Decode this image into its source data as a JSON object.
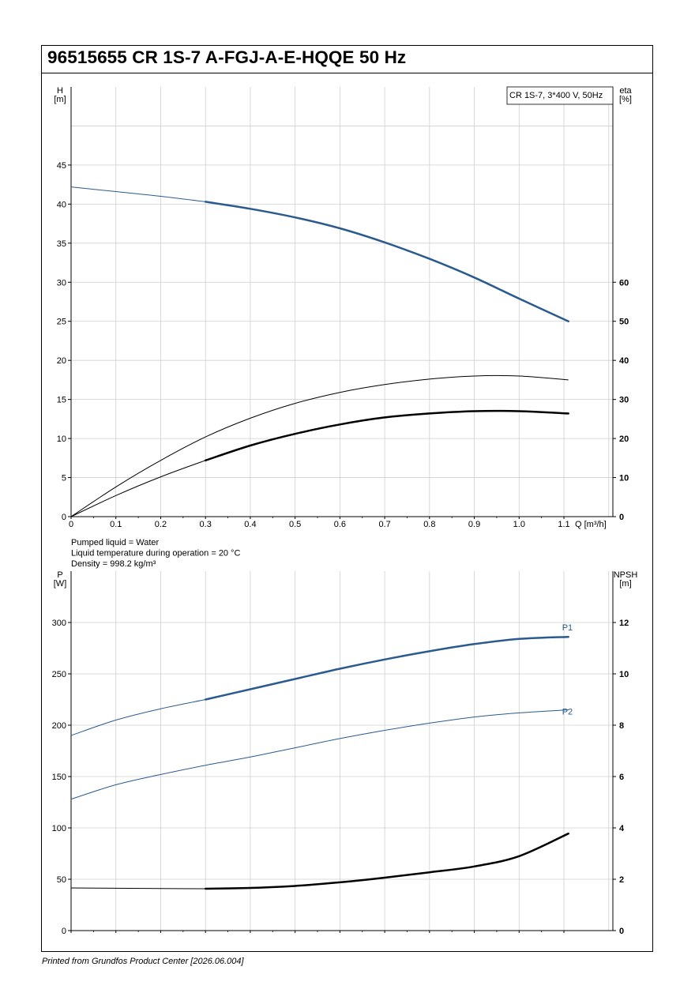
{
  "title": "96515655 CR 1S-7 A-FGJ-A-E-HQQE 50 Hz",
  "footer": "Printed from Grundfos Product Center [2026.06.004]",
  "colors": {
    "blue": "#2b5a8e",
    "black": "#000000",
    "grid": "#cfcfcf"
  },
  "chart_data": [
    {
      "type": "line",
      "legend_box": "CR 1S-7, 3*400 V, 50Hz",
      "y_left_label": [
        "H",
        "[m]"
      ],
      "y_right_label": [
        "eta",
        "[%]"
      ],
      "x_label": "Q [m³/h]",
      "xlim": [
        0,
        1.2
      ],
      "x_ticks": [
        0,
        0.1,
        0.2,
        0.3,
        0.4,
        0.5,
        0.6,
        0.7,
        0.8,
        0.9,
        1.0,
        1.1
      ],
      "x_tick_labels": [
        "0",
        "0.1",
        "0.2",
        "0.3",
        "0.4",
        "0.5",
        "0.6",
        "0.7",
        "0.8",
        "0.9",
        "1.0",
        "1.1"
      ],
      "ylim_left": [
        0,
        55
      ],
      "y_left_ticks": [
        0,
        5,
        10,
        15,
        20,
        25,
        30,
        35,
        40,
        45
      ],
      "ylim_right": [
        0,
        110
      ],
      "y_right_ticks": [
        0,
        10,
        20,
        30,
        40,
        50,
        60
      ],
      "grid": true,
      "series": [
        {
          "id": "h-curve",
          "axis": "left",
          "color": "#2b5a8e",
          "thin_until": 0.3,
          "x": [
            0,
            0.1,
            0.2,
            0.3,
            0.4,
            0.5,
            0.6,
            0.7,
            0.8,
            0.9,
            1.0,
            1.11
          ],
          "y": [
            42.2,
            41.6,
            41.0,
            40.3,
            39.4,
            38.3,
            36.9,
            35.1,
            33.0,
            30.6,
            27.9,
            25.0
          ]
        },
        {
          "id": "eta-pump-curve",
          "axis": "left",
          "color": "#000000",
          "thin_until": 1.2,
          "x": [
            0,
            0.1,
            0.2,
            0.3,
            0.4,
            0.5,
            0.6,
            0.7,
            0.8,
            0.9,
            1.0,
            1.11
          ],
          "y": [
            0,
            3.8,
            7.2,
            10.2,
            12.6,
            14.5,
            15.9,
            16.9,
            17.6,
            18.0,
            18.0,
            17.5
          ]
        },
        {
          "id": "eta-total-curve",
          "axis": "left",
          "color": "#000000",
          "thin_until": 0.3,
          "x": [
            0,
            0.1,
            0.2,
            0.3,
            0.4,
            0.5,
            0.6,
            0.7,
            0.8,
            0.9,
            1.0,
            1.11
          ],
          "y": [
            0,
            2.7,
            5.1,
            7.2,
            9.1,
            10.6,
            11.8,
            12.7,
            13.2,
            13.5,
            13.5,
            13.2
          ]
        }
      ],
      "notes": [
        "Pumped liquid = Water",
        "Liquid temperature during operation = 20 °C",
        "Density = 998.2 kg/m³"
      ]
    },
    {
      "type": "line",
      "y_left_label": [
        "P",
        "[W]"
      ],
      "y_right_label": [
        "NPSH",
        "[m]"
      ],
      "xlim": [
        0,
        1.2
      ],
      "ylim_left": [
        0,
        350
      ],
      "y_left_ticks": [
        0,
        50,
        100,
        150,
        200,
        250,
        300
      ],
      "ylim_right": [
        0,
        14
      ],
      "y_right_ticks": [
        0,
        2,
        4,
        6,
        8,
        10,
        12
      ],
      "grid": true,
      "series": [
        {
          "id": "p1-curve",
          "name": "P1",
          "axis": "left",
          "color": "#2b5a8e",
          "thin_until": 0.3,
          "x": [
            0,
            0.1,
            0.2,
            0.3,
            0.4,
            0.5,
            0.6,
            0.7,
            0.8,
            0.9,
            1.0,
            1.11
          ],
          "y": [
            190,
            205,
            216,
            225,
            235,
            245,
            255,
            264,
            272,
            279,
            284,
            286
          ]
        },
        {
          "id": "p2-curve",
          "name": "P2",
          "axis": "left",
          "color": "#2b5a8e",
          "thin_until": 1.2,
          "x": [
            0,
            0.1,
            0.2,
            0.3,
            0.4,
            0.5,
            0.6,
            0.7,
            0.8,
            0.9,
            1.0,
            1.11
          ],
          "y": [
            128,
            142,
            152,
            161,
            169,
            178,
            187,
            195,
            202,
            208,
            212,
            215
          ]
        },
        {
          "id": "npsh-curve",
          "axis": "right",
          "color": "#000000",
          "thin_until": 0.3,
          "x": [
            0,
            0.1,
            0.2,
            0.3,
            0.4,
            0.5,
            0.6,
            0.7,
            0.8,
            0.9,
            1.0,
            1.11
          ],
          "y": [
            1.66,
            1.65,
            1.64,
            1.63,
            1.66,
            1.74,
            1.88,
            2.06,
            2.27,
            2.5,
            2.9,
            3.78
          ]
        }
      ]
    }
  ]
}
